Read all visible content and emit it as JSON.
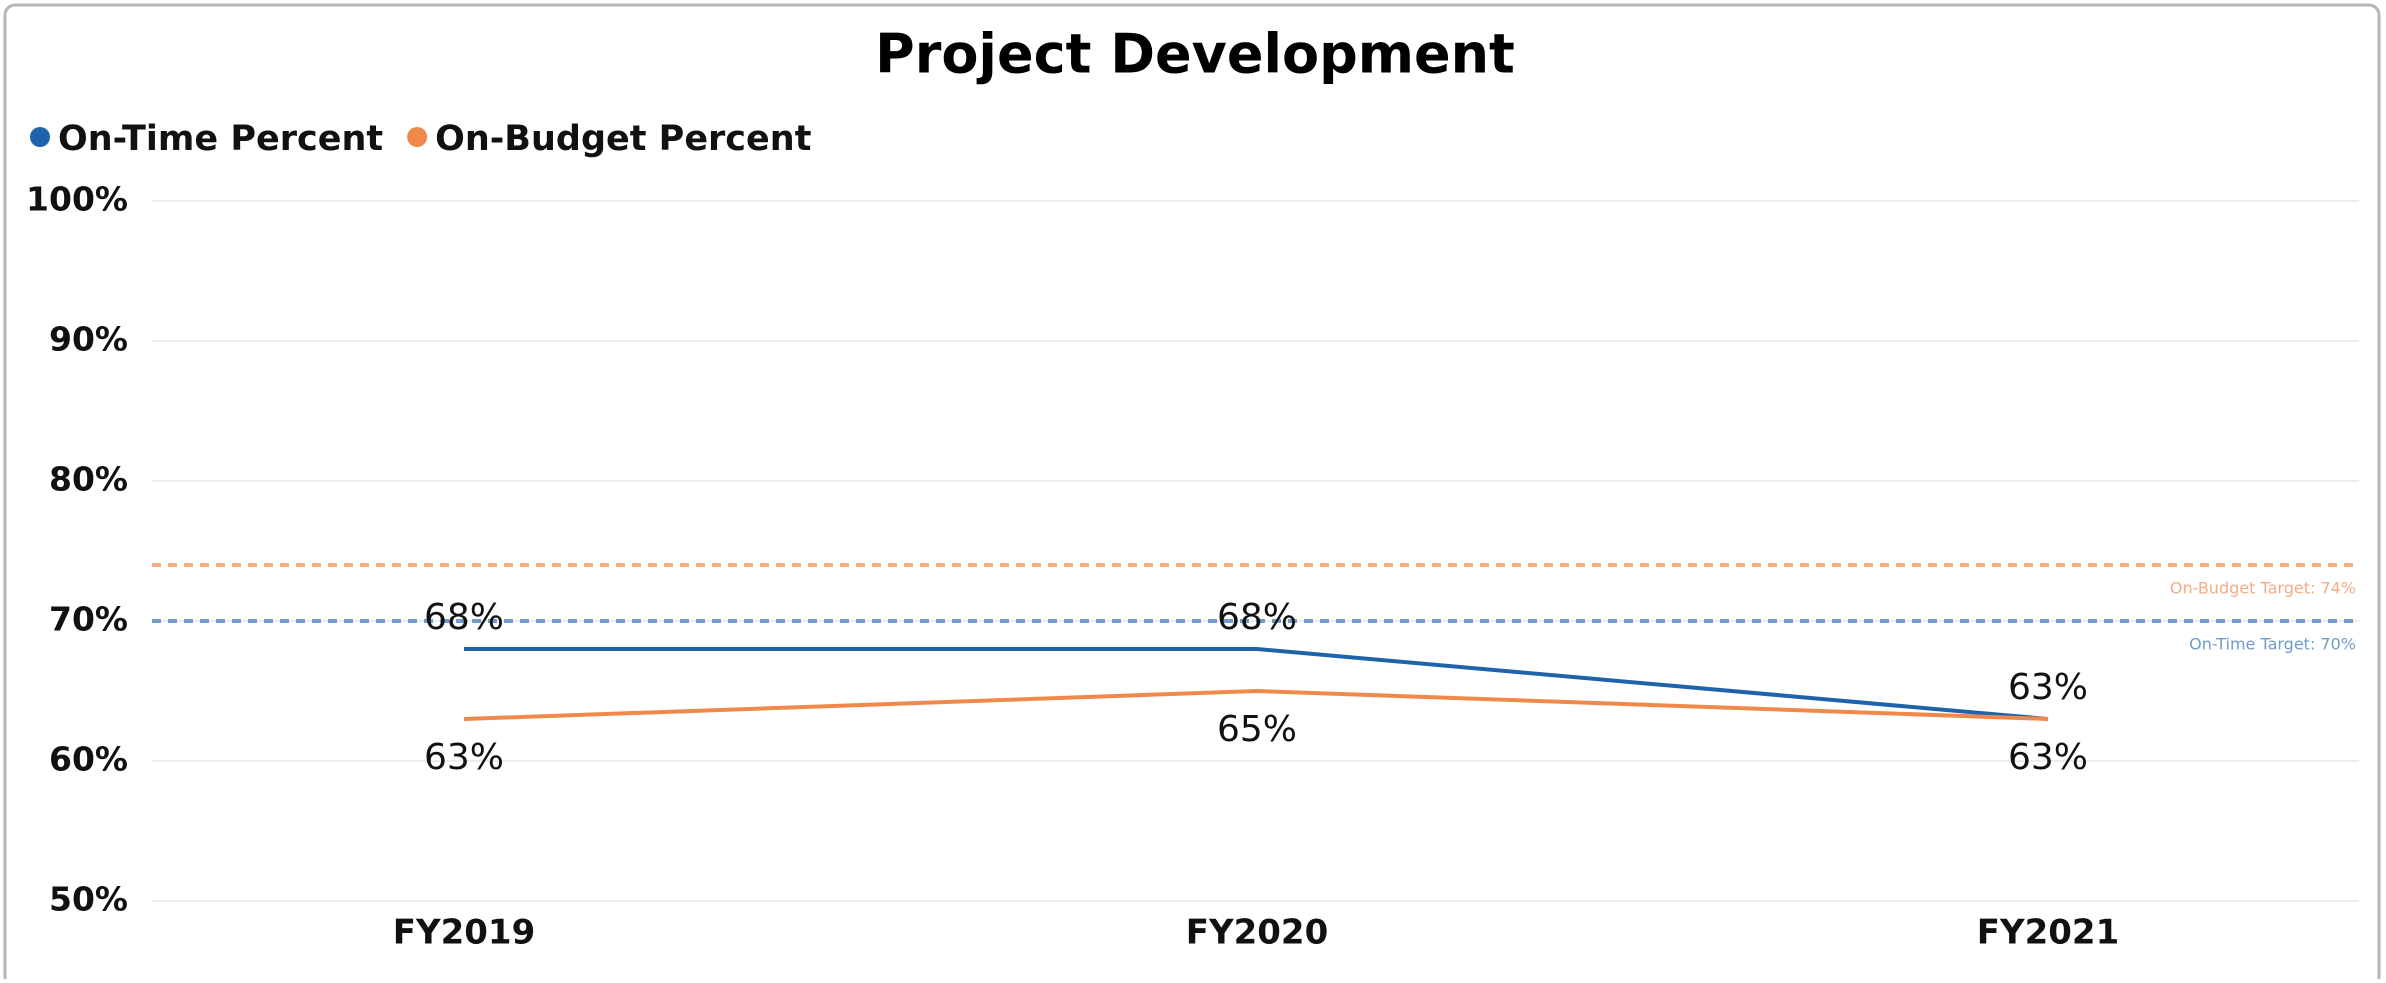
{
  "chart_data": {
    "type": "line",
    "title": "Project Development",
    "categories": [
      "FY2019",
      "FY2020",
      "FY2021"
    ],
    "series": [
      {
        "name": "On-Time Percent",
        "color": "#1f63ab",
        "values": [
          68,
          68,
          63
        ],
        "value_labels": [
          "68%",
          "68%",
          "63%"
        ],
        "label_position": "above"
      },
      {
        "name": "On-Budget Percent",
        "color": "#f0884c",
        "values": [
          63,
          65,
          63
        ],
        "value_labels": [
          "63%",
          "65%",
          "63%"
        ],
        "label_position": "below"
      }
    ],
    "reference_lines": [
      {
        "label": "On-Budget Target: 74%",
        "value": 74,
        "color": "#f4ad86"
      },
      {
        "label": "On-Time Target: 70%",
        "value": 70,
        "color": "#6f9cc9"
      }
    ],
    "ylim": [
      50,
      100
    ],
    "yticks": [
      {
        "value": 50,
        "label": "50%"
      },
      {
        "value": 60,
        "label": "60%"
      },
      {
        "value": 70,
        "label": "70%"
      },
      {
        "value": 80,
        "label": "80%"
      },
      {
        "value": 90,
        "label": "90%"
      },
      {
        "value": 100,
        "label": "100%"
      }
    ],
    "grid": true,
    "legend": "top-left"
  }
}
